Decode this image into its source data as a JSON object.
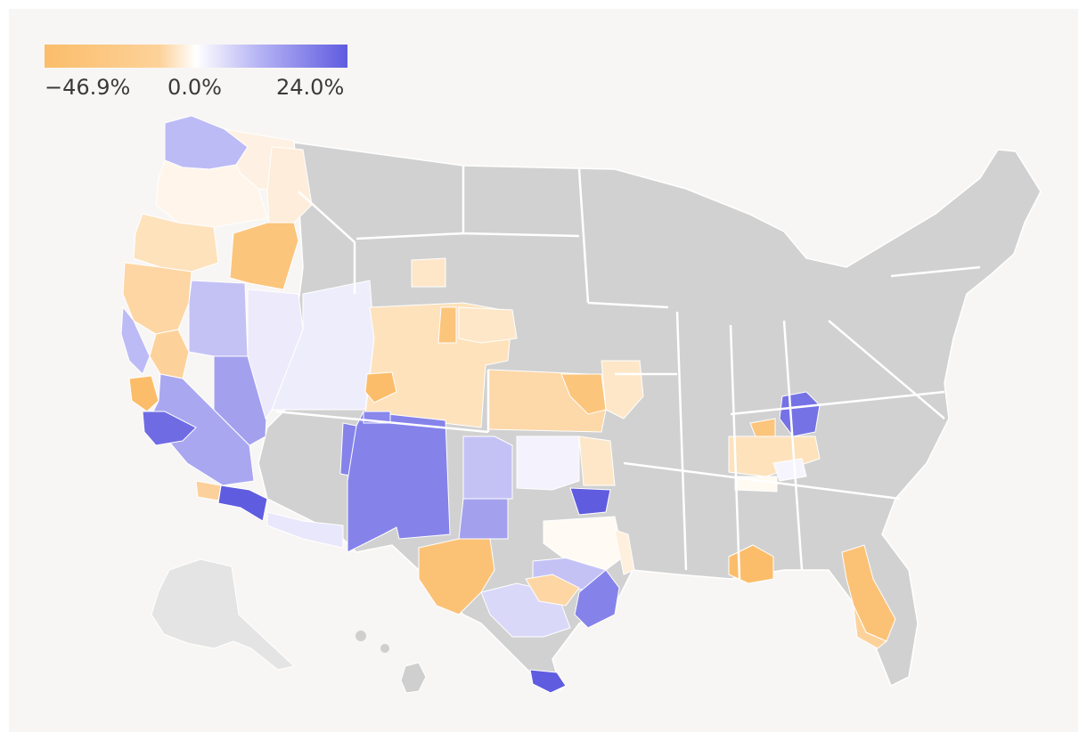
{
  "legend": {
    "min_label": "−46.9%",
    "mid_label": "0.0%",
    "max_label": "24.0%",
    "min_value": -46.9,
    "mid_value": 0.0,
    "max_value": 24.0,
    "negative_color": "#fbbd6a",
    "positive_color": "#5f5ce0",
    "no_data_color": "#d1d1d1"
  },
  "regions": [
    {
      "name": "washington-west",
      "value": 6
    },
    {
      "name": "washington-east",
      "value": -4
    },
    {
      "name": "oregon-north",
      "value": -2
    },
    {
      "name": "oregon-southwest",
      "value": -10
    },
    {
      "name": "idaho-north",
      "value": -6
    },
    {
      "name": "idaho-south",
      "value": -30
    },
    {
      "name": "california-north",
      "value": -20
    },
    {
      "name": "california-central-valley",
      "value": -18
    },
    {
      "name": "california-bay",
      "value": 6
    },
    {
      "name": "california-central-coast",
      "value": -34
    },
    {
      "name": "california-south",
      "value": 12
    },
    {
      "name": "california-la",
      "value": 20
    },
    {
      "name": "california-san-diego",
      "value": 22
    },
    {
      "name": "nevada",
      "value": 8
    },
    {
      "name": "nevada-south",
      "value": 14
    },
    {
      "name": "utah",
      "value": 2
    },
    {
      "name": "wyoming",
      "value": 2
    },
    {
      "name": "colorado",
      "value": -8
    },
    {
      "name": "colorado-denver",
      "value": -40
    },
    {
      "name": "arizona-west",
      "value": 2
    },
    {
      "name": "new-mexico",
      "value": 16
    },
    {
      "name": "texas-panhandle",
      "value": 10
    },
    {
      "name": "texas-west",
      "value": -30
    },
    {
      "name": "texas-central",
      "value": 10
    },
    {
      "name": "texas-houston",
      "value": 15
    },
    {
      "name": "texas-south-coast",
      "value": 24
    },
    {
      "name": "oklahoma",
      "value": 2
    },
    {
      "name": "oklahoma-east",
      "value": -6
    },
    {
      "name": "arkansas",
      "value": 0
    },
    {
      "name": "kansas",
      "value": -12
    },
    {
      "name": "missouri-west",
      "value": -10
    },
    {
      "name": "nebraska-south",
      "value": -10
    },
    {
      "name": "kentucky-central",
      "value": 18
    },
    {
      "name": "tennessee",
      "value": -8
    },
    {
      "name": "alabama-south",
      "value": -30
    },
    {
      "name": "florida",
      "value": -28
    }
  ]
}
